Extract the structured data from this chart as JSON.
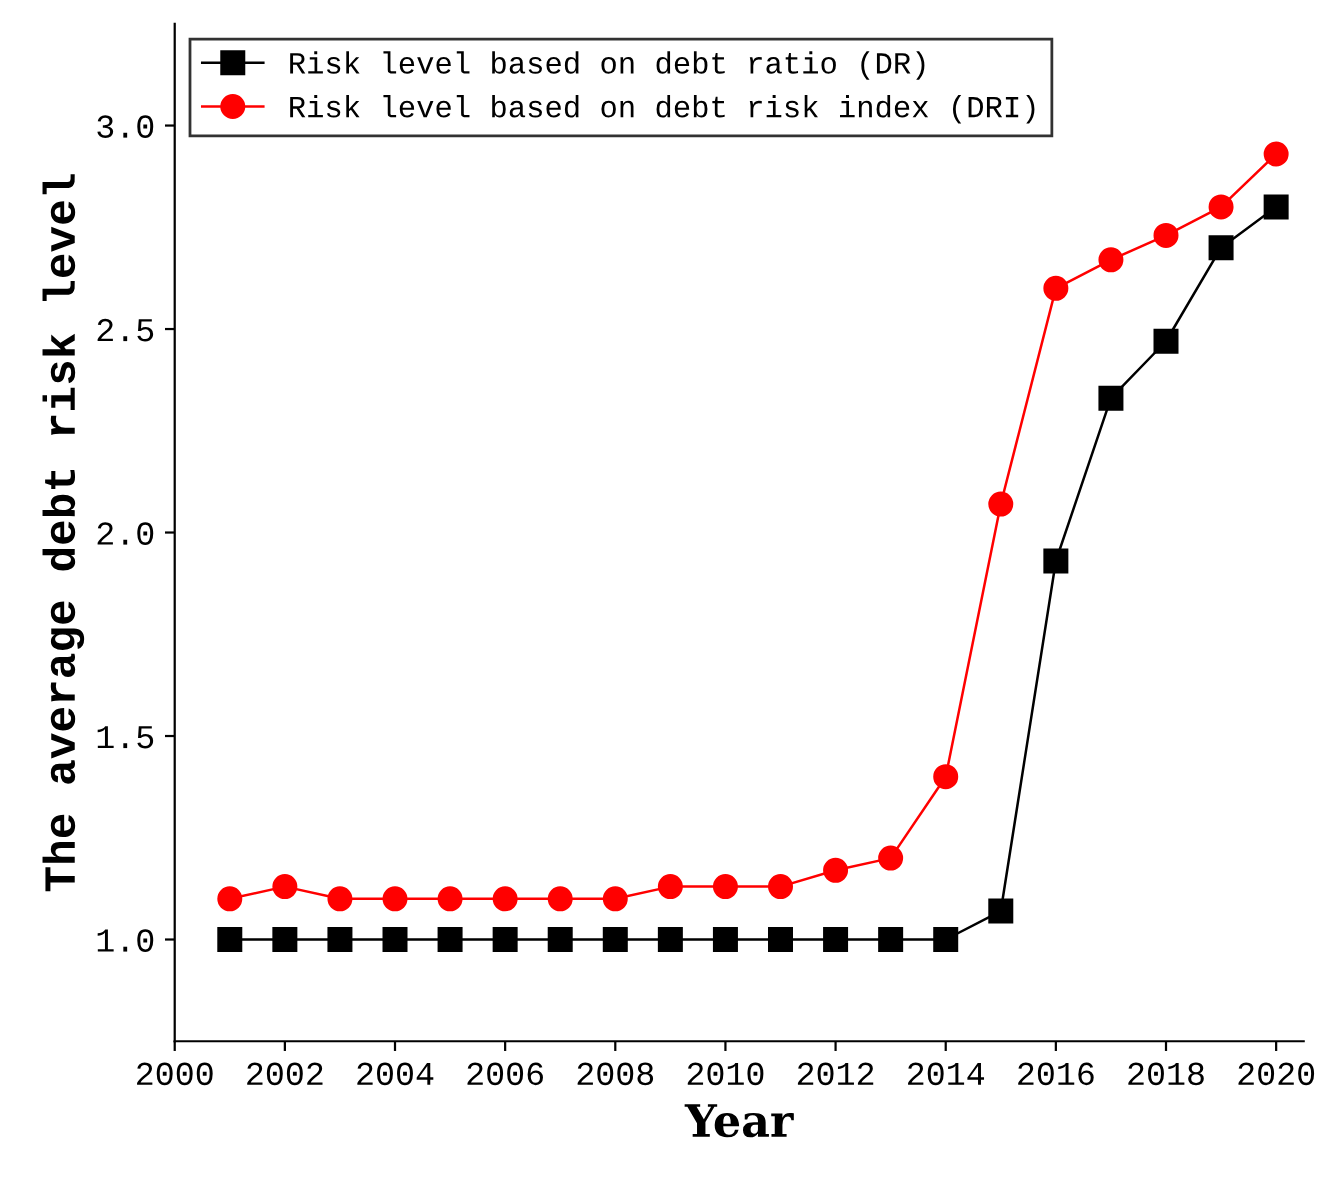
{
  "chart_data": {
    "type": "line",
    "xlabel": "Year",
    "ylabel": "The average debt risk level",
    "x": [
      2001,
      2002,
      2003,
      2004,
      2005,
      2006,
      2007,
      2008,
      2009,
      2010,
      2011,
      2012,
      2013,
      2014,
      2015,
      2016,
      2017,
      2018,
      2019,
      2020
    ],
    "series": [
      {
        "name": "Risk level based on debt ratio (DR)",
        "color": "#000000",
        "marker": "square",
        "values": [
          1.0,
          1.0,
          1.0,
          1.0,
          1.0,
          1.0,
          1.0,
          1.0,
          1.0,
          1.0,
          1.0,
          1.0,
          1.0,
          1.0,
          1.07,
          1.93,
          2.33,
          2.47,
          2.7,
          2.8
        ]
      },
      {
        "name": "Risk level based on debt risk index (DRI)",
        "color": "#ff0000",
        "marker": "circle",
        "values": [
          1.1,
          1.13,
          1.1,
          1.1,
          1.1,
          1.1,
          1.1,
          1.1,
          1.13,
          1.13,
          1.13,
          1.17,
          1.2,
          1.4,
          2.07,
          2.6,
          2.67,
          2.73,
          2.8,
          2.93
        ]
      }
    ],
    "xlim": [
      2000,
      2020.5
    ],
    "xticks": [
      2000,
      2002,
      2004,
      2006,
      2008,
      2010,
      2012,
      2014,
      2016,
      2018,
      2020
    ],
    "ylim": [
      0.75,
      3.25
    ],
    "yticks": [
      {
        "value": 1,
        "label": "1.0"
      },
      1.5,
      {
        "value": 2,
        "label": "2.0"
      },
      2.5,
      {
        "value": 3,
        "label": "3.0"
      }
    ],
    "grid": false,
    "legend": "top left",
    "line_style": "solid"
  }
}
